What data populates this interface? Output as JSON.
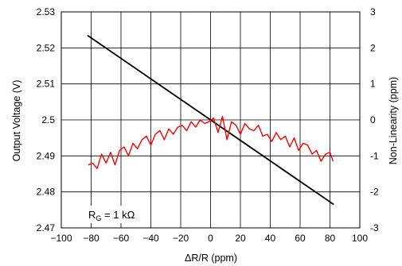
{
  "chart_data": {
    "type": "line",
    "title": "",
    "xlabel": "ΔR/R (ppm)",
    "ylabel_left": "Output Voltage (V)",
    "ylabel_right": "Non-Linearity  (ppm)",
    "xlim": [
      -100,
      100
    ],
    "ylim_left": [
      2.47,
      2.53
    ],
    "ylim_right": [
      -3,
      3
    ],
    "grid": true,
    "legend": "none",
    "x_ticks": [
      "−100",
      "−80",
      "−60",
      "−40",
      "−20",
      "0",
      "20",
      "40",
      "60",
      "80",
      "100"
    ],
    "x_tick_values": [
      -100,
      -80,
      -60,
      -40,
      -20,
      0,
      20,
      40,
      60,
      80,
      100
    ],
    "y_left_ticks": [
      "2.47",
      "2.48",
      "2.49",
      "2.5",
      "2.51",
      "2.52",
      "2.53"
    ],
    "y_left_tick_values": [
      2.47,
      2.48,
      2.49,
      2.5,
      2.51,
      2.52,
      2.53
    ],
    "y_right_ticks": [
      "-3",
      "-2",
      "-1",
      "0",
      "1",
      "2",
      "3"
    ],
    "y_right_tick_values": [
      -3,
      -2,
      -1,
      0,
      1,
      2,
      3
    ],
    "annotation": {
      "base": "R",
      "subscript": "G",
      "rest": " = 1 kΩ"
    },
    "series": [
      {
        "axis": "left",
        "color": "#000000",
        "x": [
          -82.5,
          82.5
        ],
        "y": [
          2.5235,
          2.4765
        ]
      },
      {
        "axis": "right",
        "color": "#ff0000",
        "x": [
          -82,
          -79,
          -76,
          -73,
          -70,
          -67,
          -64,
          -61,
          -58,
          -55,
          -52,
          -49,
          -46,
          -43,
          -40,
          -37,
          -34,
          -31,
          -28,
          -25,
          -22,
          -19,
          -16,
          -13,
          -10,
          -7,
          -4,
          -1,
          2,
          5,
          8,
          11,
          14,
          17,
          20,
          23,
          26,
          29,
          32,
          35,
          38,
          41,
          44,
          47,
          50,
          53,
          56,
          59,
          62,
          65,
          68,
          71,
          74,
          77,
          80,
          82
        ],
        "y": [
          -1.25,
          -1.2,
          -1.35,
          -0.95,
          -1.2,
          -0.9,
          -1.25,
          -0.85,
          -0.75,
          -1.0,
          -0.65,
          -0.8,
          -0.55,
          -0.45,
          -0.7,
          -0.4,
          -0.3,
          -0.55,
          -0.25,
          -0.4,
          -0.2,
          -0.15,
          -0.3,
          -0.05,
          -0.2,
          0.0,
          -0.1,
          -0.05,
          0.05,
          -0.35,
          0.1,
          -0.55,
          -0.05,
          -0.15,
          -0.4,
          -0.1,
          -0.25,
          -0.3,
          -0.15,
          -0.45,
          -0.4,
          -0.6,
          -0.35,
          -0.55,
          -0.45,
          -0.75,
          -0.5,
          -0.85,
          -0.65,
          -0.7,
          -0.95,
          -0.85,
          -1.15,
          -0.95,
          -0.9,
          -1.15
        ]
      }
    ]
  }
}
